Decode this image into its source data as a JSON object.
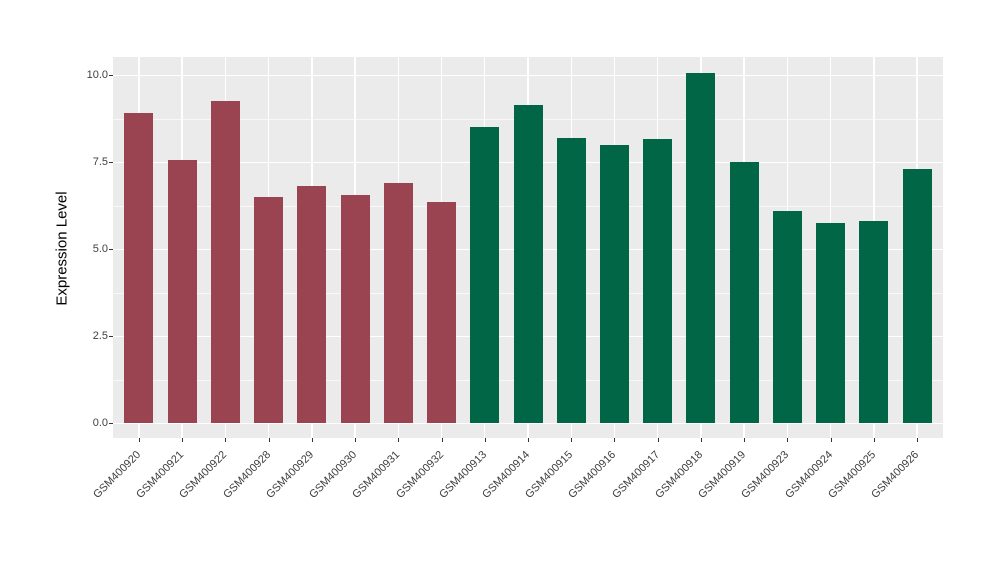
{
  "figure": {
    "background": "#FFFFFF",
    "panel_background": "#EBEBEB",
    "grid_major_color": "#FFFFFF",
    "grid_minor_color": "#F5F5F5",
    "tick_color": "#333333",
    "axis_text_color": "#404040",
    "axis_title_color": "#000000"
  },
  "chart_data": {
    "type": "bar",
    "title": "",
    "xlabel": "",
    "ylabel": "Expression Level",
    "ylim": [
      -0.45,
      10.55
    ],
    "y_major_ticks": [
      0.0,
      2.5,
      5.0,
      7.5,
      10.0
    ],
    "y_tick_labels": [
      "0.0",
      "2.5",
      "5.0",
      "7.5",
      "10.0"
    ],
    "y_minor_ticks": [
      1.25,
      3.75,
      6.25,
      8.75
    ],
    "grid": true,
    "legend_position": "none",
    "categories": [
      "GSM400920",
      "GSM400921",
      "GSM400922",
      "GSM400928",
      "GSM400929",
      "GSM400930",
      "GSM400931",
      "GSM400932",
      "GSM400913",
      "GSM400914",
      "GSM400915",
      "GSM400916",
      "GSM400917",
      "GSM400918",
      "GSM400919",
      "GSM400923",
      "GSM400924",
      "GSM400925",
      "GSM400926"
    ],
    "values": [
      8.9,
      7.55,
      9.25,
      6.5,
      6.8,
      6.55,
      6.9,
      6.35,
      8.5,
      9.15,
      8.2,
      8.0,
      8.15,
      10.05,
      7.5,
      6.1,
      5.75,
      5.8,
      7.3
    ],
    "colors": [
      "#9A4451",
      "#9A4451",
      "#9A4451",
      "#9A4451",
      "#9A4451",
      "#9A4451",
      "#9A4451",
      "#9A4451",
      "#006646",
      "#006646",
      "#006646",
      "#006646",
      "#006646",
      "#006646",
      "#006646",
      "#006646",
      "#006646",
      "#006646",
      "#006646"
    ],
    "color_groups": [
      {
        "color": "#9A4451",
        "samples": [
          "GSM400920",
          "GSM400921",
          "GSM400922",
          "GSM400928",
          "GSM400929",
          "GSM400930",
          "GSM400931",
          "GSM400932"
        ]
      },
      {
        "color": "#006646",
        "samples": [
          "GSM400913",
          "GSM400914",
          "GSM400915",
          "GSM400916",
          "GSM400917",
          "GSM400918",
          "GSM400919",
          "GSM400923",
          "GSM400924",
          "GSM400925",
          "GSM400926"
        ]
      }
    ]
  }
}
